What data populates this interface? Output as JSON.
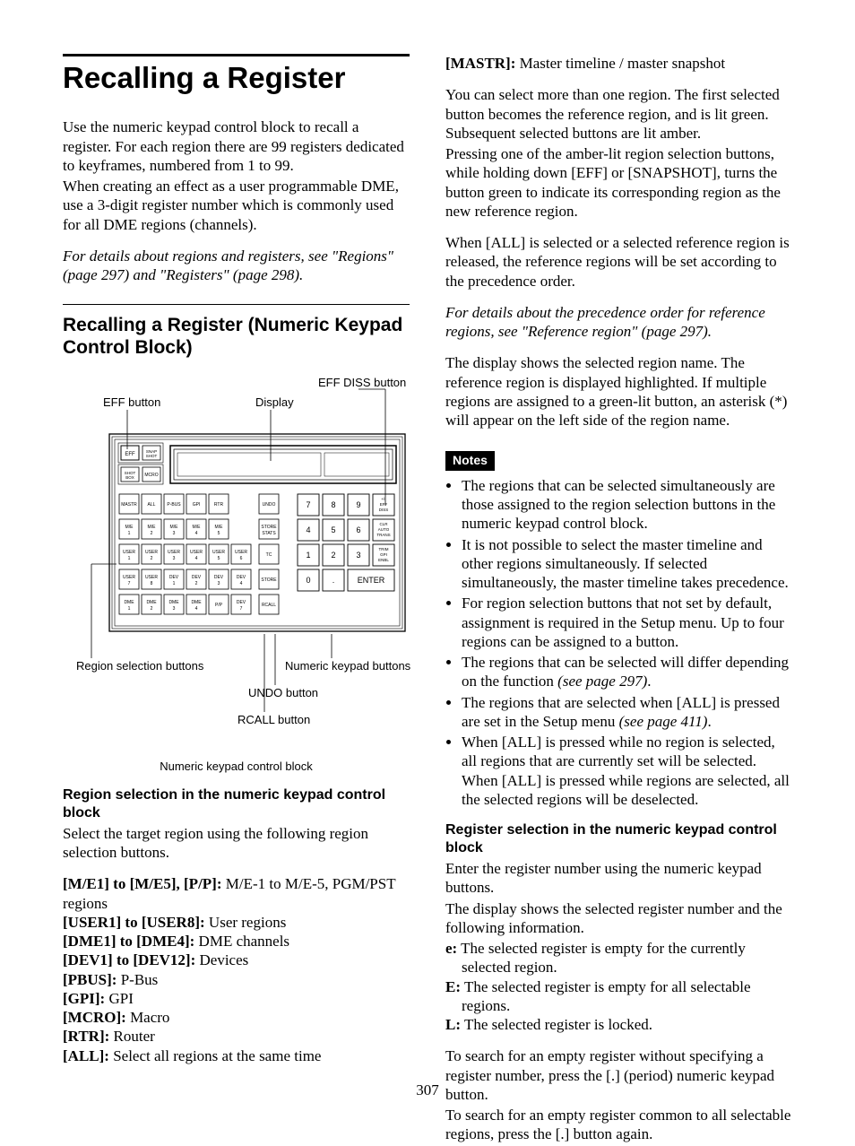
{
  "page_number": "307",
  "left": {
    "h1": "Recalling a Register",
    "intro": [
      "Use the numeric keypad control block to recall a register. For each region there are 99 registers dedicated to keyframes, numbered from 1 to 99.",
      "When creating an effect as a user programmable DME, use a 3-digit register number which is commonly used for all DME regions (channels)."
    ],
    "ref": "For details about regions and registers, see \"Regions\" (page 297) and \"Registers\" (page 298).",
    "h2": "Recalling a Register (Numeric Keypad Control Block)",
    "figure": {
      "callouts": {
        "eff_button": "EFF button",
        "display": "Display",
        "eff_diss_button": "EFF DISS button",
        "region_selection_buttons": "Region selection buttons",
        "numeric_keypad_buttons": "Numeric keypad buttons",
        "undo_button": "UNDO button",
        "rcall_button": "RCALL button"
      },
      "caption": "Numeric keypad control block",
      "top_row": [
        {
          "label": "EFF"
        },
        {
          "label": "SNAP SHOT",
          "small": true
        }
      ],
      "second_row": [
        {
          "label": "SHOT BOX",
          "small": true
        },
        {
          "label": "MCRO",
          "small": true
        }
      ],
      "region_rows": [
        [
          "MASTR",
          "ALL",
          "P-BUS",
          "GPI",
          "RTR",
          "",
          "UNDO"
        ],
        [
          "M/E 1",
          "M/E 2",
          "M/E 3",
          "M/E 4",
          "M/E 5",
          "",
          "STORE STATS"
        ],
        [
          "USER 1",
          "USER 2",
          "USER 3",
          "USER 4",
          "USER 5",
          "USER 6",
          "TC"
        ],
        [
          "USER 7",
          "USER 8",
          "DEV 1",
          "DEV 2",
          "DEV 3",
          "DEV 4",
          "STORE"
        ],
        [
          "DME 1",
          "DME 2",
          "DME 3",
          "DME 4",
          "P/P",
          "DEV 7",
          "RCALL"
        ]
      ],
      "numeric_rows": [
        [
          "7",
          "8",
          "9",
          "+/- EFF DISS"
        ],
        [
          "4",
          "5",
          "6",
          "CLR AUTO TRANS"
        ],
        [
          "1",
          "2",
          "3",
          "TRIM GPI ENBL"
        ],
        [
          "0",
          ".",
          "ENTER",
          ""
        ]
      ]
    },
    "h3_region": "Region selection in the numeric keypad control block",
    "region_intro": "Select the target region using the following region selection buttons.",
    "region_defs": [
      {
        "term": "[M/E1] to [M/E5], [P/P]:",
        "def": "M/E-1 to M/E-5, PGM/PST regions",
        "wrap": true
      },
      {
        "term": "[USER1] to [USER8]:",
        "def": "User regions"
      },
      {
        "term": "[DME1] to [DME4]:",
        "def": "DME channels"
      },
      {
        "term": "[DEV1] to [DEV12]:",
        "def": "Devices"
      },
      {
        "term": "[PBUS]:",
        "def": "P-Bus"
      },
      {
        "term": "[GPI]:",
        "def": "GPI"
      },
      {
        "term": "[MCRO]:",
        "def": "Macro"
      },
      {
        "term": "[RTR]:",
        "def": "Router"
      },
      {
        "term": "[ALL]:",
        "def": "Select all regions at the same time"
      }
    ]
  },
  "right": {
    "mastr_term": "[MASTR]:",
    "mastr_def": "Master timeline / master snapshot",
    "para1": [
      "You can select more than one region. The first selected button becomes the reference region, and is lit green. Subsequent selected buttons are lit amber.",
      "Pressing one of the amber-lit region selection buttons, while holding down [EFF] or [SNAPSHOT], turns the button green to indicate its corresponding region as the new reference region."
    ],
    "para2": "When [ALL] is selected or a selected reference region is released, the reference regions will be set according to the precedence order.",
    "ref": "For details about the precedence order for reference regions, see \"Reference region\" (page 297).",
    "para3": "The display shows the selected region name. The reference region is displayed highlighted. If multiple regions are assigned to a green-lit button, an asterisk (*) will appear on the left side of the region name.",
    "notes_label": "Notes",
    "notes": [
      "The regions that can be selected simultaneously are those assigned to the region selection buttons in the numeric keypad control block.",
      "It is not possible to select the master timeline and other regions simultaneously. If selected simultaneously, the master timeline takes precedence.",
      "For region selection buttons that not set by default, assignment is required in the Setup menu. Up to four regions can be assigned to a button."
    ],
    "notes_with_ref": [
      {
        "text": "The regions that can be selected will differ depending on the function ",
        "ref": "(see page 297)"
      },
      {
        "text": "The regions that are selected when [ALL] is pressed are set in the Setup menu ",
        "ref": "(see page 411)"
      }
    ],
    "notes_tail": [
      "When [ALL] is pressed while no region is selected, all regions that are currently set will be selected. When [ALL] is pressed while regions are selected, all the selected regions will be deselected."
    ],
    "h3_register": "Register selection in the numeric keypad control block",
    "reg_intro": [
      "Enter the register number using the numeric keypad buttons.",
      "The display shows the selected register number and the following information."
    ],
    "reg_defs": [
      {
        "term": "e:",
        "def": "The selected register is empty for the currently selected region."
      },
      {
        "term": "E:",
        "def": "The selected register is empty for all selectable regions."
      },
      {
        "term": "L:",
        "def": "The selected register is locked."
      }
    ],
    "reg_tail": [
      "To search for an empty register without specifying a register number, press the [.] (period) numeric keypad button.",
      "To search for an empty register common to all selectable regions, press the [.] button again."
    ]
  }
}
